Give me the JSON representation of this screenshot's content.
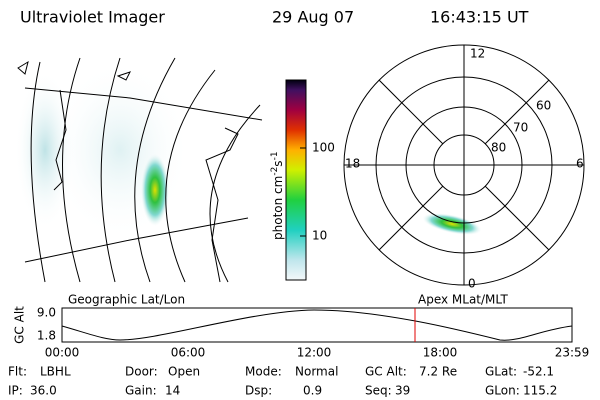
{
  "header": {
    "instrument": "Ultraviolet Imager",
    "date": "29 Aug 07",
    "time": "16:43:15 UT"
  },
  "colorbar": {
    "unit": "photon cm",
    "unit_exp1": "-2",
    "unit_s": "s",
    "unit_exp2": "-1",
    "ticks": [
      "100",
      "10"
    ]
  },
  "polar": {
    "mlt_labels": [
      "12",
      "18",
      "6",
      "0"
    ],
    "lat_labels": [
      "60",
      "70",
      "80"
    ]
  },
  "altitude_plot": {
    "map_label": "Geographic Lat/Lon",
    "polar_label": "Apex MLat/MLT",
    "axis_label": "GC Alt",
    "ticks": [
      "9.0",
      "1.8"
    ],
    "time_labels": [
      "00:00",
      "06:00",
      "12:00",
      "18:00",
      "23:59"
    ]
  },
  "footer": {
    "rows": [
      [
        {
          "label": "Flt:",
          "value": "LBHL"
        },
        {
          "label": "Door:",
          "value": "Open"
        },
        {
          "label": "Mode:",
          "value": "Normal"
        },
        {
          "label": "GC Alt:",
          "value": "7.2 Re"
        },
        {
          "label": "GLat:",
          "value": "-52.1"
        }
      ],
      [
        {
          "label": "IP:",
          "value": "36.0"
        },
        {
          "label": "Gain:",
          "value": "14"
        },
        {
          "label": "Dsp:",
          "value": "0.9"
        },
        {
          "label": "Seq:",
          "value": "39"
        },
        {
          "label": "GLon:",
          "value": "115.2"
        }
      ]
    ]
  }
}
